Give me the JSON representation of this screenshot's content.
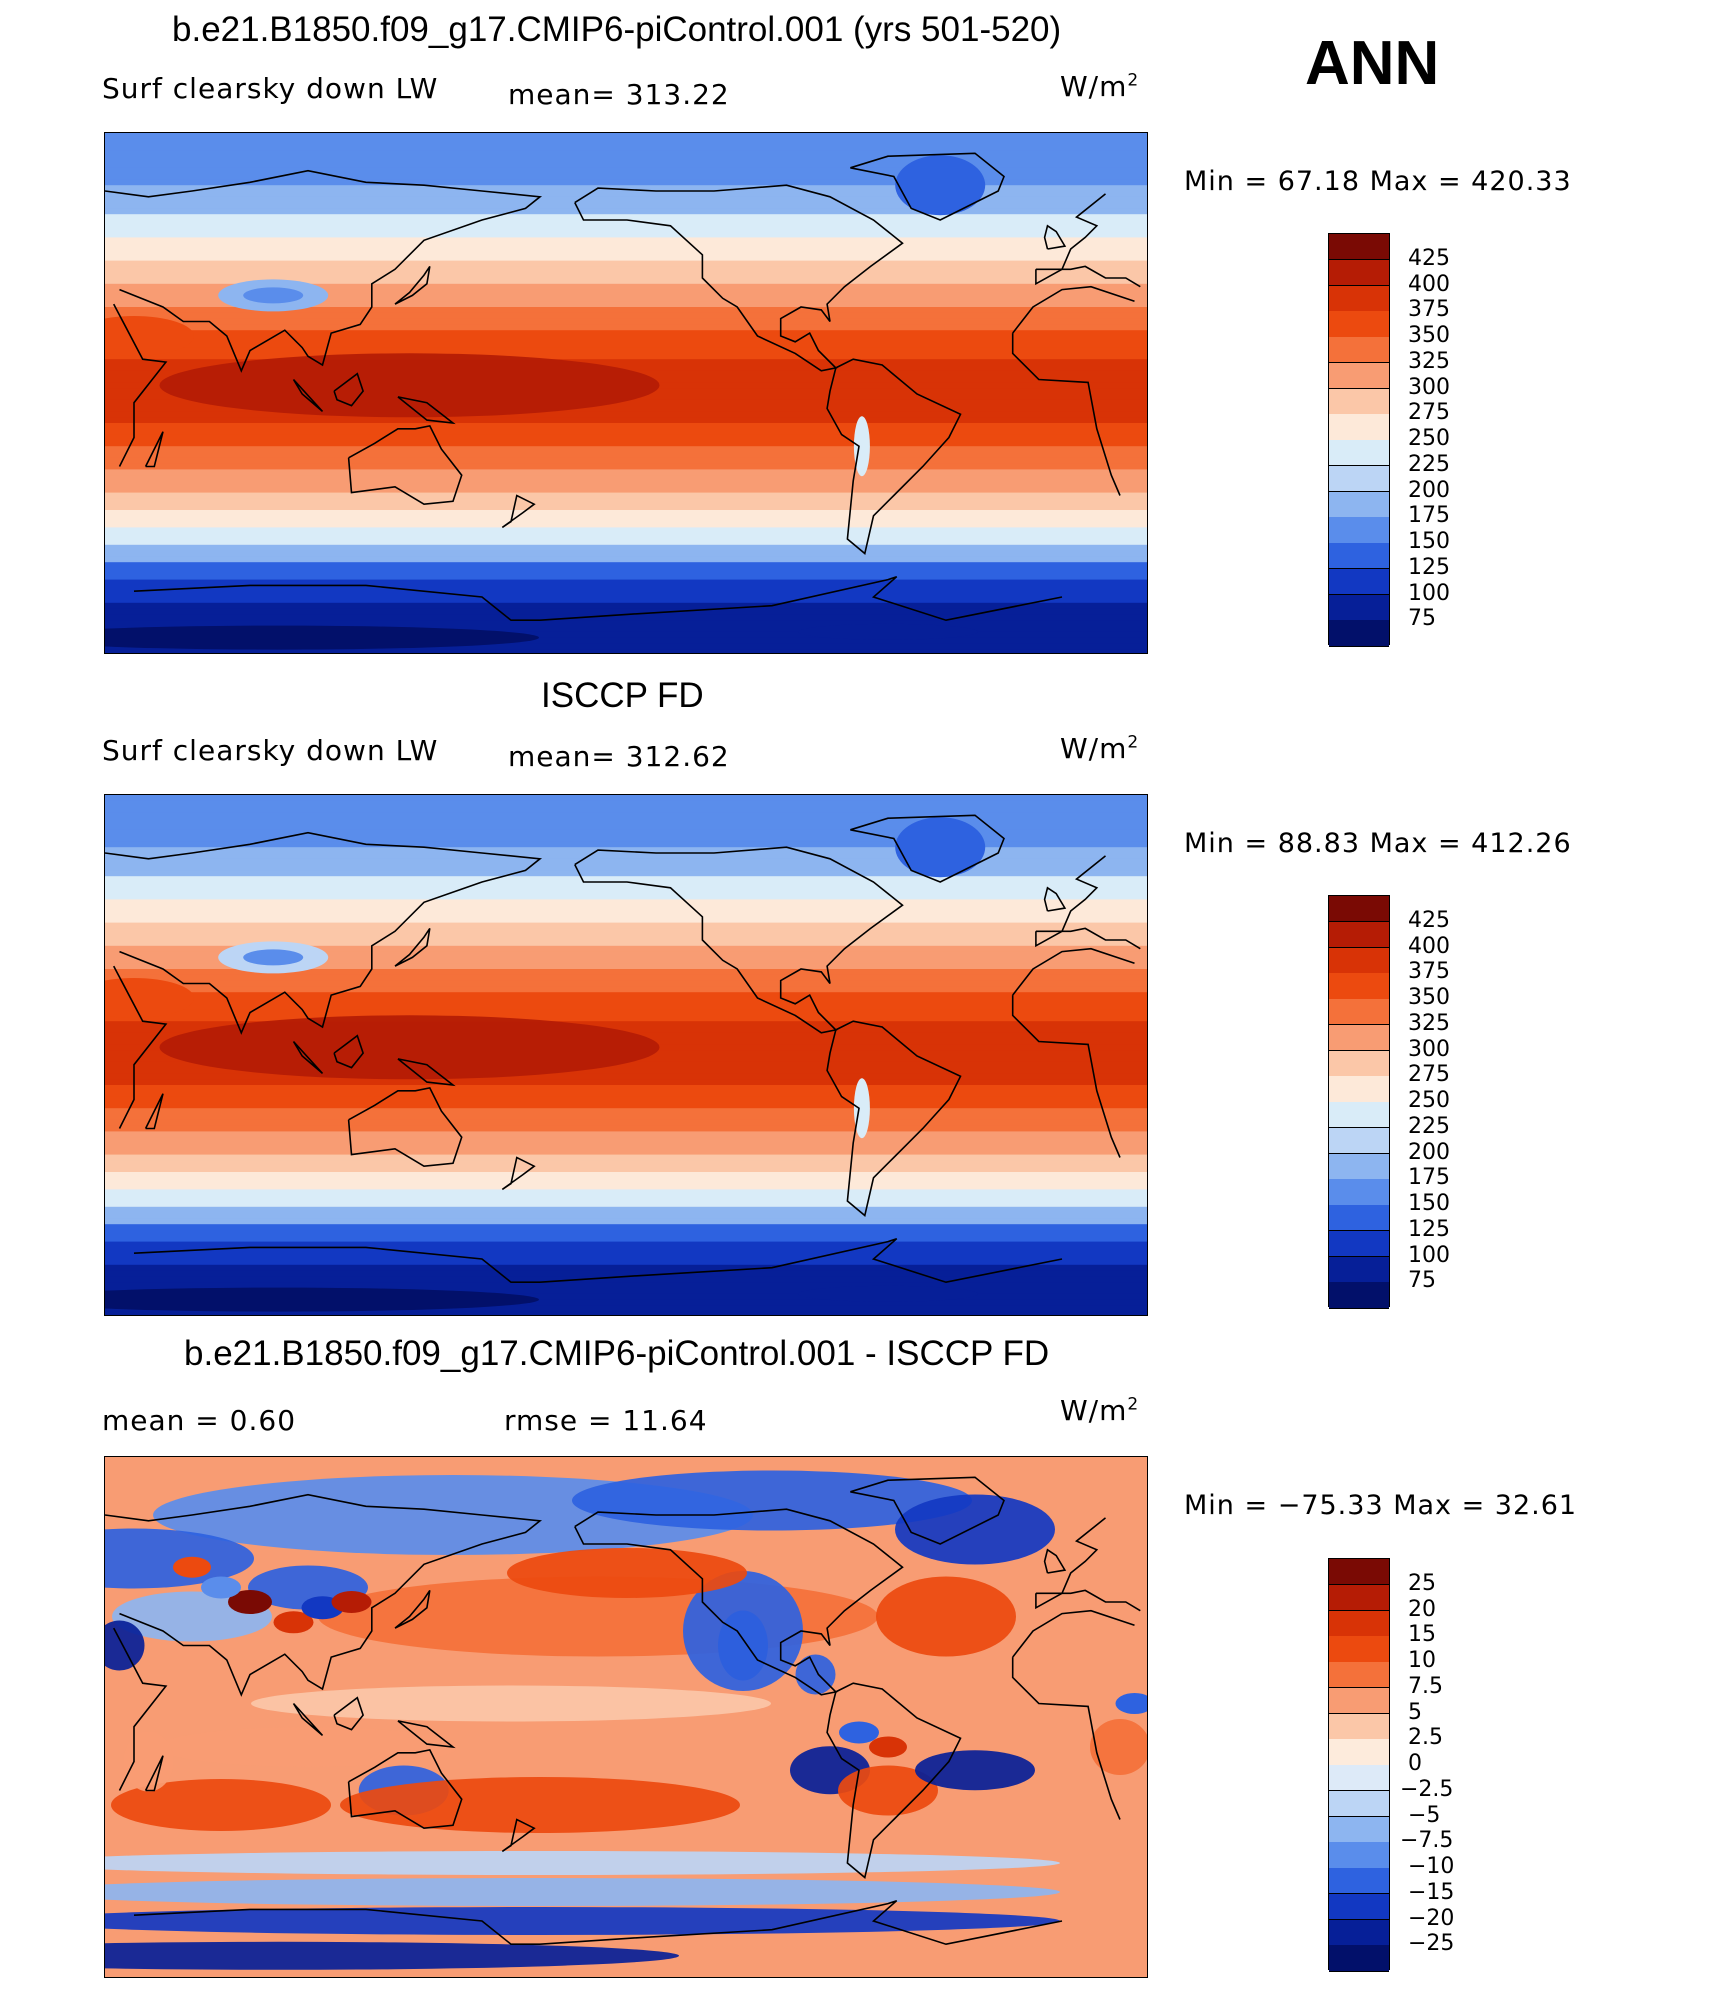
{
  "season": "ANN",
  "panels": [
    {
      "title": "b.e21.B1850.f09_g17.CMIP6-piControl.001 (yrs 501-520)",
      "left_label": "Surf clearsky down LW",
      "center_label": "mean= 313.22",
      "units": "W/m",
      "units_sup": "2",
      "minmax": "Min =   67.18 Max = 420.33",
      "colorbar_labels": [
        "425",
        "400",
        "375",
        "350",
        "325",
        "300",
        "275",
        "250",
        "225",
        "200",
        "175",
        "150",
        "125",
        "100",
        "75"
      ],
      "palette": "abs"
    },
    {
      "title": "ISCCP FD",
      "left_label": "Surf clearsky down LW",
      "center_label": "mean= 312.62",
      "units": "W/m",
      "units_sup": "2",
      "minmax": "Min =   88.83 Max = 412.26",
      "colorbar_labels": [
        "425",
        "400",
        "375",
        "350",
        "325",
        "300",
        "275",
        "250",
        "225",
        "200",
        "175",
        "150",
        "125",
        "100",
        "75"
      ],
      "palette": "abs"
    },
    {
      "title": "b.e21.B1850.f09_g17.CMIP6-piControl.001 - ISCCP FD",
      "left_label": "mean =    0.60",
      "center_label": "rmse =   11.64",
      "units": "W/m",
      "units_sup": "2",
      "minmax": "Min = −75.33 Max =   32.61",
      "colorbar_labels": [
        "25",
        "20",
        "15",
        "10",
        "7.5",
        "5",
        "2.5",
        "0",
        "−2.5",
        "−5",
        "−7.5",
        "−10",
        "−15",
        "−20",
        "−25"
      ],
      "palette": "diff"
    }
  ],
  "colors": {
    "abs_palette": [
      "#7a0a04",
      "#b51c05",
      "#d83306",
      "#ec4a0f",
      "#f4713a",
      "#f89c73",
      "#fbc7a8",
      "#fde9d9",
      "#d9ecf8",
      "#bcd5f5",
      "#8db5f0",
      "#5a8deb",
      "#2e62e0",
      "#1238c2",
      "#061f98",
      "#02106a"
    ],
    "diff_palette": [
      "#7a0a04",
      "#b51c05",
      "#d83306",
      "#ec4a0f",
      "#f4713a",
      "#f89c73",
      "#fbc7a8",
      "#fdebdc",
      "#ddeaf8",
      "#bcd5f5",
      "#8db5f0",
      "#5a8deb",
      "#2e62e0",
      "#1238c2",
      "#061f98",
      "#02106a"
    ]
  }
}
